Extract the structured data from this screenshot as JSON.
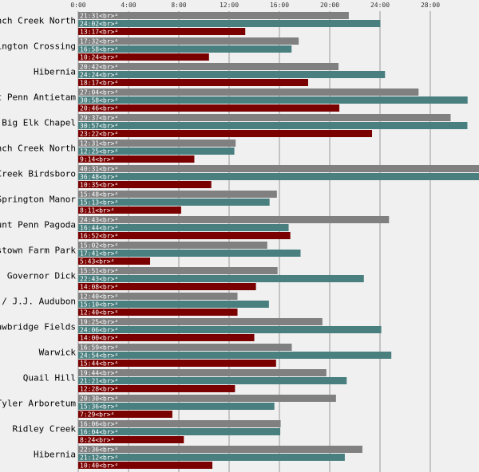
{
  "chart_data": {
    "type": "bar",
    "orientation": "horizontal",
    "x_unit": "minutes:seconds",
    "xlim": [
      "0:00",
      "33:00"
    ],
    "x_ticks": [
      "0:00",
      "4:00",
      "8:00",
      "12:00",
      "16:00",
      "20:00",
      "24:00",
      "28:00"
    ],
    "grid": true,
    "colors": [
      "#808080",
      "#4a7f7f",
      "#7a0000"
    ],
    "categories": [
      "French Creek North",
      "Washington Crossing",
      "Hibernia",
      "Mount Penn Antietam",
      "Hall Big Elk Chapel",
      "French Creek North",
      "French Creek Birdsboro",
      "Springton Manor",
      "Mount Penn Pagoda",
      "Norristown Farm Park",
      "Governor Dick",
      "Mill Grove / J.J. Audubon",
      "Strawbridge Fields",
      "Warwick",
      "Quail Hill",
      "Tyler Arboretum",
      "Ridley Creek",
      "Hibernia"
    ],
    "series": [
      {
        "values": [
          "21:31",
          "17:32",
          "20:42",
          "27:04",
          "29:37",
          "12:31",
          "40:31",
          "15:48",
          "24:43",
          "15:02",
          "15:51",
          "12:40",
          "19:25",
          "16:59",
          "19:44",
          "20:30",
          "16:06",
          "22:36"
        ]
      },
      {
        "values": [
          "24:02",
          "16:58",
          "24:24",
          "30:58",
          "30:57",
          "12:25",
          "36:48",
          "15:13",
          "16:44",
          "17:41",
          "22:43",
          "15:10",
          "24:06",
          "24:54",
          "21:21",
          "15:36",
          "16:04",
          "21:12"
        ]
      },
      {
        "values": [
          "13:17",
          "10:24",
          "18:17",
          "20:46",
          "23:22",
          "9:14",
          "10:35",
          "8:11",
          "16:52",
          "5:43",
          "14:08",
          "12:40",
          "14:00",
          "15:44",
          "12:28",
          "7:29",
          "8:24",
          "10:40"
        ]
      }
    ],
    "label_suffix": "<br>"
  }
}
